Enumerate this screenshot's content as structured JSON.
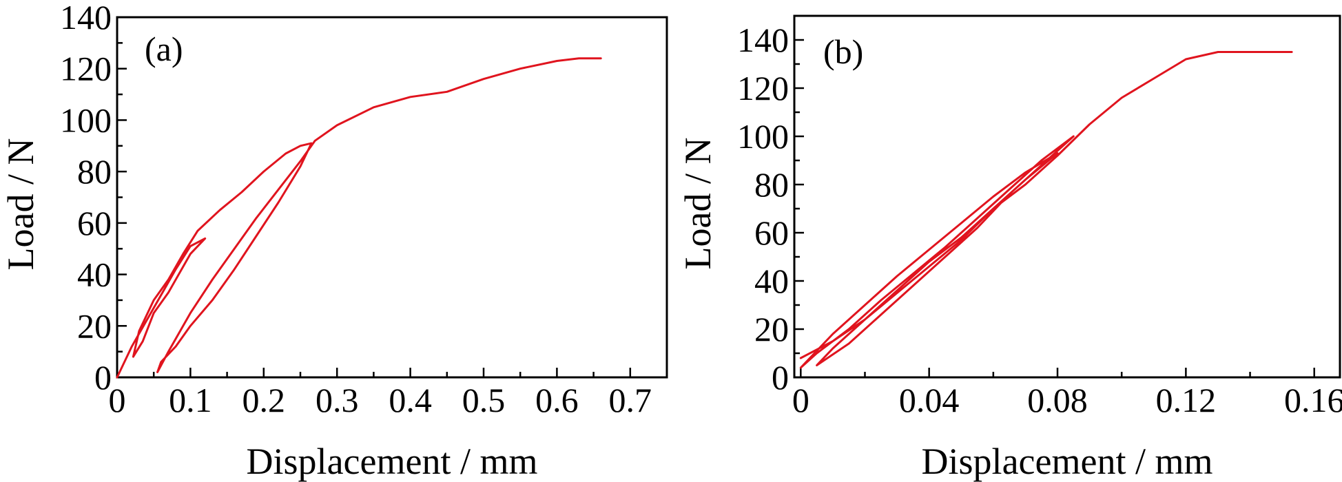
{
  "colors": {
    "series": "#e0141e",
    "axes": "#000000"
  },
  "chart_data": [
    {
      "type": "line",
      "panel_label": "(a)",
      "xlabel": "Displacement / mm",
      "ylabel": "Load / N",
      "xlim": [
        0,
        0.75
      ],
      "ylim": [
        0,
        140
      ],
      "xticks": [
        0,
        0.1,
        0.2,
        0.3,
        0.4,
        0.5,
        0.6,
        0.7
      ],
      "xtick_labels": [
        "0",
        "0.1",
        "0.2",
        "0.3",
        "0.4",
        "0.5",
        "0.6",
        "0.7"
      ],
      "yticks": [
        0,
        20,
        40,
        60,
        80,
        100,
        120,
        140
      ],
      "ytick_labels": [
        "0",
        "20",
        "40",
        "60",
        "80",
        "100",
        "120",
        "140"
      ],
      "grid": false,
      "series": [
        {
          "x": [
            0.0,
            0.02,
            0.04,
            0.06,
            0.08,
            0.1,
            0.12,
            0.1,
            0.07,
            0.05,
            0.035,
            0.022,
            0.03,
            0.05,
            0.07,
            0.09,
            0.11,
            0.14,
            0.17,
            0.2,
            0.23,
            0.25,
            0.265,
            0.25,
            0.22,
            0.19,
            0.16,
            0.13,
            0.1,
            0.08,
            0.06,
            0.055,
            0.07,
            0.1,
            0.13,
            0.16,
            0.19,
            0.22,
            0.25,
            0.27,
            0.3,
            0.35,
            0.4,
            0.45,
            0.5,
            0.55,
            0.6,
            0.63,
            0.66
          ],
          "y": [
            0,
            12,
            22,
            32,
            42,
            51,
            54,
            48,
            33,
            25,
            14,
            8,
            18,
            30,
            38,
            48,
            57,
            65,
            72,
            80,
            87,
            90,
            91,
            82,
            68,
            55,
            42,
            30,
            20,
            12,
            6,
            2,
            10,
            25,
            38,
            50,
            62,
            73,
            84,
            92,
            98,
            105,
            109,
            111,
            116,
            120,
            123,
            124,
            124
          ]
        }
      ]
    },
    {
      "type": "line",
      "panel_label": "(b)",
      "xlabel": "Displacement / mm",
      "ylabel": "Load / N",
      "xlim": [
        -0.002,
        0.168
      ],
      "ylim": [
        0,
        150
      ],
      "xticks": [
        0,
        0.04,
        0.08,
        0.12,
        0.16
      ],
      "xtick_labels": [
        "0",
        "0.04",
        "0.08",
        "0.12",
        "0.16"
      ],
      "yticks": [
        0,
        20,
        40,
        60,
        80,
        100,
        120,
        140
      ],
      "ytick_labels": [
        "0",
        "20",
        "40",
        "60",
        "80",
        "100",
        "120",
        "140"
      ],
      "grid": false,
      "series": [
        {
          "x": [
            0.0,
            0.01,
            0.02,
            0.03,
            0.04,
            0.05,
            0.06,
            0.07,
            0.08,
            0.07,
            0.06,
            0.05,
            0.04,
            0.03,
            0.02,
            0.01,
            0.0,
            0.005,
            0.015,
            0.025,
            0.035,
            0.045,
            0.055,
            0.065,
            0.075,
            0.085,
            0.075,
            0.065,
            0.055,
            0.045,
            0.035,
            0.025,
            0.015,
            0.005,
            0.01,
            0.02,
            0.03,
            0.04,
            0.05,
            0.06,
            0.07,
            0.08,
            0.09,
            0.1,
            0.11,
            0.12,
            0.13,
            0.14,
            0.153
          ],
          "y": [
            8,
            15,
            24,
            35,
            46,
            57,
            70,
            82,
            93,
            85,
            75,
            64,
            53,
            42,
            30,
            18,
            4,
            10,
            20,
            32,
            43,
            54,
            66,
            78,
            90,
            100,
            88,
            76,
            62,
            50,
            38,
            26,
            14,
            5,
            12,
            24,
            36,
            48,
            58,
            70,
            80,
            92,
            105,
            116,
            124,
            132,
            135,
            135,
            135
          ]
        }
      ]
    }
  ]
}
